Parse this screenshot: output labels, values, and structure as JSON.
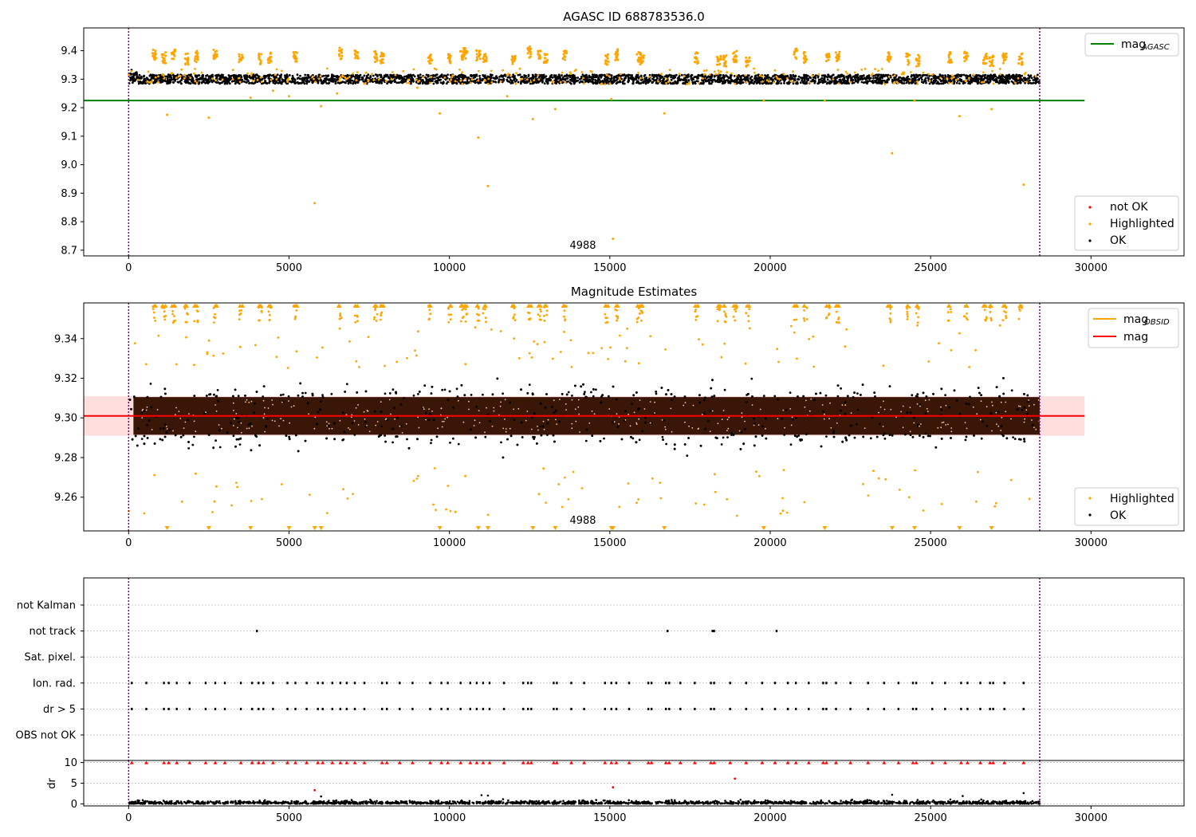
{
  "chart_data": [
    {
      "type": "scatter",
      "title": "AGASC ID 688783536.0",
      "xlim": [
        -1400,
        32900
      ],
      "ylim": [
        8.68,
        9.48
      ],
      "x_ticks": [
        0,
        5000,
        10000,
        15000,
        20000,
        25000,
        30000
      ],
      "x_tick_labels": [
        "0",
        "5000",
        "10000",
        "15000",
        "20000",
        "25000",
        "30000"
      ],
      "y_ticks": [
        8.7,
        8.8,
        8.9,
        9.0,
        9.1,
        9.2,
        9.3,
        9.4
      ],
      "y_tick_labels": [
        "8.7",
        "8.8",
        "8.9",
        "9.0",
        "9.1",
        "9.2",
        "9.3",
        "9.4"
      ],
      "annotation": {
        "text": "4988",
        "x": 14200,
        "y": 8.715
      },
      "observation_bounds": [
        0,
        28400
      ],
      "reference_lines": [
        {
          "name": "mag",
          "subscript": "AGASC",
          "y": 9.225,
          "x_range": [
            -1400,
            29800
          ],
          "color": "#008000"
        }
      ],
      "series": [
        {
          "name": "not OK",
          "color": "#ff0000",
          "points": []
        },
        {
          "name": "Highlighted",
          "color": "#ffa500",
          "band": {
            "center": 9.31,
            "spread": 0.035
          },
          "cluster_x": [
            800,
            1100,
            1400,
            1800,
            2100,
            2700,
            3500,
            4100,
            4400,
            5200,
            6600,
            7100,
            7700,
            7900,
            9400,
            10000,
            10400,
            10500,
            10900,
            11100,
            12000,
            12500,
            12800,
            13000,
            13600,
            14900,
            15200,
            15900,
            16000,
            17700,
            18400,
            18600,
            18900,
            19300,
            20800,
            21100,
            21800,
            22100,
            23700,
            24300,
            24600,
            25600,
            26100,
            26700,
            26900,
            27300,
            27800
          ],
          "cluster_y": [
            9.385,
            9.375,
            9.39,
            9.37,
            9.38,
            9.385,
            9.38,
            9.37,
            9.375,
            9.38,
            9.39,
            9.385,
            9.38,
            9.375,
            9.37,
            9.375,
            9.38,
            9.39,
            9.385,
            9.375,
            9.37,
            9.395,
            9.38,
            9.375,
            9.38,
            9.37,
            9.385,
            9.38,
            9.37,
            9.375,
            9.37,
            9.365,
            9.38,
            9.36,
            9.39,
            9.375,
            9.37,
            9.38,
            9.375,
            9.37,
            9.365,
            9.375,
            9.38,
            9.37,
            9.365,
            9.37,
            9.37
          ],
          "outliers_x": [
            1200,
            2500,
            3800,
            5000,
            5800,
            6000,
            9700,
            10900,
            11200,
            12600,
            13300,
            15100,
            15050,
            16700,
            19800,
            21700,
            23800,
            24500,
            25900,
            26900,
            27900,
            9000,
            11800,
            4500,
            6500
          ],
          "outliers_y": [
            9.175,
            9.165,
            9.235,
            9.24,
            8.865,
            9.205,
            9.18,
            9.095,
            8.925,
            9.16,
            9.195,
            8.74,
            9.23,
            9.18,
            9.225,
            9.225,
            9.04,
            9.225,
            9.17,
            9.195,
            8.93,
            9.27,
            9.24,
            9.26,
            9.25
          ]
        },
        {
          "name": "OK",
          "color": "#000000",
          "band": {
            "center": 9.3,
            "spread": 0.032
          }
        }
      ],
      "legend": {
        "position": "lower right",
        "entries": [
          "not OK",
          "Highlighted",
          "OK"
        ]
      },
      "legend_lines": {
        "position": "upper right",
        "entries": [
          "mag"
        ]
      }
    },
    {
      "type": "scatter",
      "title": "Magnitude Estimates",
      "xlim": [
        -1400,
        32900
      ],
      "ylim": [
        9.243,
        9.358
      ],
      "x_ticks": [
        0,
        5000,
        10000,
        15000,
        20000,
        25000,
        30000
      ],
      "x_tick_labels": [
        "0",
        "5000",
        "10000",
        "15000",
        "20000",
        "25000",
        "30000"
      ],
      "y_ticks": [
        9.26,
        9.28,
        9.3,
        9.32,
        9.34
      ],
      "y_tick_labels": [
        "9.26",
        "9.28",
        "9.30",
        "9.32",
        "9.34"
      ],
      "annotation": {
        "text": "4988",
        "x": 14200,
        "y": 9.248
      },
      "observation_bounds": [
        0,
        28400
      ],
      "reference_lines": [
        {
          "name": "mag",
          "subscript": "OBSID",
          "color": "#ffa500",
          "legend_only": true
        },
        {
          "name": "mag",
          "y": 9.301,
          "x_range": [
            -1400,
            29800
          ],
          "color": "#ff0000"
        }
      ],
      "shaded_band": {
        "y_range": [
          9.291,
          9.311
        ],
        "x_range": [
          -1400,
          29800
        ],
        "color": "#ffdede"
      },
      "series": [
        {
          "name": "Highlighted",
          "color": "#ffa500"
        },
        {
          "name": "OK",
          "color": "#000000",
          "band": {
            "center": 9.301,
            "spread": 0.012
          }
        }
      ],
      "legend": {
        "position": "lower right",
        "entries": [
          "Highlighted",
          "OK"
        ]
      },
      "legend_lines": {
        "position": "upper right",
        "entries": [
          "mag",
          "mag"
        ]
      }
    },
    {
      "type": "scatter",
      "title": "",
      "xlim": [
        -1400,
        32900
      ],
      "categories": [
        "not Kalman",
        "not track",
        "Sat. pixel.",
        "Ion. rad.",
        "dr > 5",
        "OBS not OK"
      ],
      "flags": {
        "not track": [
          4000,
          16800,
          18200,
          18250,
          20200
        ],
        "Ion. rad.": [
          100,
          550,
          1100,
          1250,
          1500,
          1900,
          2400,
          2700,
          3000,
          3500,
          3850,
          4050,
          4200,
          4500,
          4950,
          5200,
          5550,
          5900,
          6050,
          6350,
          6600,
          6800,
          7050,
          7350,
          7900,
          8050,
          8450,
          8850,
          9400,
          9750,
          9950,
          10350,
          10650,
          10850,
          11050,
          11250,
          11700,
          12300,
          12450,
          12550,
          13250,
          13350,
          13800,
          14200,
          14850,
          15050,
          15200,
          15600,
          16200,
          16300,
          16750,
          16850,
          17200,
          17650,
          18150,
          18250,
          18750,
          19250,
          19750,
          20150,
          20550,
          20800,
          21200,
          21650,
          21750,
          22050,
          22500,
          23050,
          23550,
          24000,
          24450,
          24550,
          25050,
          25450,
          25950,
          26150,
          26550,
          26850,
          26950,
          27300,
          27900
        ],
        "dr > 5": [
          100,
          550,
          1100,
          1250,
          1500,
          1900,
          2400,
          2700,
          3000,
          3500,
          3850,
          4050,
          4200,
          4500,
          4950,
          5200,
          5550,
          5900,
          6050,
          6350,
          6600,
          6800,
          7050,
          7350,
          7900,
          8050,
          8450,
          8850,
          9400,
          9750,
          9950,
          10350,
          10650,
          10850,
          11050,
          11250,
          11700,
          12300,
          12450,
          12550,
          13250,
          13350,
          13800,
          14200,
          14850,
          15050,
          15200,
          15600,
          16200,
          16300,
          16750,
          16850,
          17200,
          17650,
          18150,
          18250,
          18750,
          19250,
          19750,
          20150,
          20550,
          20800,
          21200,
          21650,
          21750,
          22050,
          22500,
          23050,
          23550,
          24000,
          24450,
          24550,
          25050,
          25450,
          25950,
          26150,
          26550,
          26850,
          26950,
          27300,
          27900
        ]
      },
      "observation_bounds": [
        0,
        28400
      ]
    },
    {
      "type": "scatter",
      "title": "",
      "xlim": [
        -1400,
        32900
      ],
      "ylim": [
        -0.5,
        10.5
      ],
      "ylabel": "dr",
      "x_ticks": [
        0,
        5000,
        10000,
        15000,
        20000,
        25000,
        30000
      ],
      "x_tick_labels": [
        "0",
        "5000",
        "10000",
        "15000",
        "20000",
        "25000",
        "30000"
      ],
      "y_ticks": [
        0,
        5,
        10
      ],
      "y_tick_labels": [
        "0",
        "5",
        "10"
      ],
      "observation_bounds": [
        0,
        28400
      ],
      "capped_x": [
        100,
        550,
        1100,
        1250,
        1500,
        1900,
        2400,
        2700,
        3000,
        3500,
        3850,
        4050,
        4200,
        4500,
        4950,
        5200,
        5550,
        5900,
        6050,
        6350,
        6600,
        6800,
        7050,
        7350,
        7900,
        8050,
        8450,
        8850,
        9400,
        9750,
        9950,
        10350,
        10650,
        10850,
        11050,
        11250,
        11700,
        12300,
        12450,
        12550,
        13250,
        13350,
        13800,
        14200,
        14850,
        15050,
        15200,
        15600,
        16200,
        16300,
        16750,
        16850,
        17200,
        17650,
        18150,
        18250,
        18750,
        19250,
        19750,
        20150,
        20550,
        20800,
        21200,
        21650,
        21750,
        22050,
        22500,
        23050,
        23550,
        24000,
        24450,
        24550,
        25050,
        25450,
        25950,
        26150,
        26550,
        26850,
        26950,
        27300,
        27900
      ],
      "red_points": [
        {
          "x": 5800,
          "y": 3.3
        },
        {
          "x": 15100,
          "y": 4.0
        },
        {
          "x": 18900,
          "y": 6.1
        }
      ],
      "black_points": [
        {
          "x": 6000,
          "y": 1.8
        },
        {
          "x": 11000,
          "y": 2.1
        },
        {
          "x": 11200,
          "y": 2.0
        },
        {
          "x": 23800,
          "y": 2.2
        },
        {
          "x": 27900,
          "y": 2.6
        },
        {
          "x": 26000,
          "y": 1.9
        }
      ],
      "series": [
        {
          "name": "OK",
          "color": "#000000"
        },
        {
          "name": "not OK",
          "color": "#ff0000"
        }
      ]
    }
  ]
}
